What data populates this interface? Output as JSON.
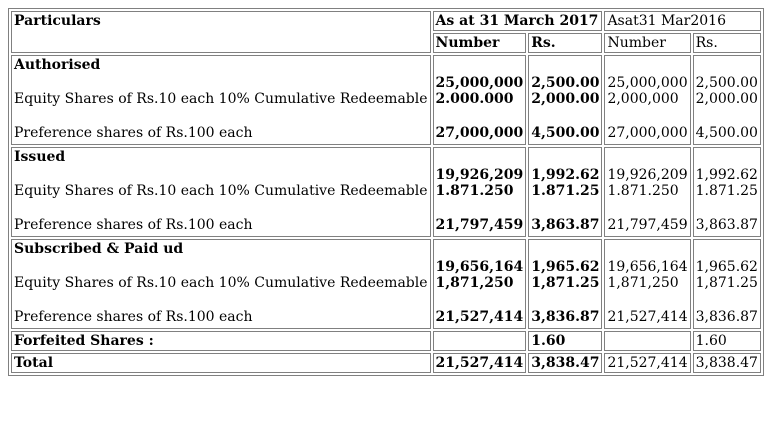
{
  "header": {
    "particulars": "Particulars",
    "period_2017": "As at 31 March 2017",
    "period_2016": "Asat31 Mar2016",
    "col_number": "Number",
    "col_rs": "Rs."
  },
  "sections": [
    {
      "title": "Authorised",
      "equity_label": "Equity Shares of Rs.10 each 10% Cumulative Redeemable",
      "preference_label": "Preference shares of Rs.100 each",
      "n2017": [
        "25,000,000",
        "2.000.000",
        "27,000,000"
      ],
      "r2017": [
        "2,500.00",
        "2,000.00",
        "4,500.00"
      ],
      "n2016": [
        "25,000,000",
        "2,000,000",
        "27,000,000"
      ],
      "r2016": [
        "2,500.00",
        "2,000.00",
        "4,500.00"
      ]
    },
    {
      "title": "Issued",
      "equity_label": "Equity Shares of Rs.10 each 10% Cumulative Redeemable",
      "preference_label": "Preference shares of Rs.100 each",
      "n2017": [
        "19,926,209",
        "1.871.250",
        "21,797,459"
      ],
      "r2017": [
        "1,992.62",
        "1.871.25",
        "3,863.87"
      ],
      "n2016": [
        "19,926,209",
        "1.871.250",
        "21,797,459"
      ],
      "r2016": [
        "1,992.62",
        "1.871.25",
        "3,863.87"
      ]
    },
    {
      "title": "Subscribed & Paid ud",
      "equity_label": "Equity Shares of Rs.10 each 10% Cumulative Redeemable",
      "preference_label": "Preference shares of Rs.100 each",
      "n2017": [
        "19,656,164",
        "1,871,250",
        "21,527,414"
      ],
      "r2017": [
        "1,965.62",
        "1,871.25",
        "3,836.87"
      ],
      "n2016": [
        "19,656,164",
        "1,871,250",
        "21,527,414"
      ],
      "r2016": [
        "1,965.62",
        "1,871.25",
        "3,836.87"
      ]
    }
  ],
  "forfeited": {
    "label": "Forfeited Shares :",
    "r2017": "1.60",
    "r2016": "1.60"
  },
  "total": {
    "label": "Total",
    "n2017": "21,527,414",
    "r2017": "3,838.47",
    "n2016": "21,527,414",
    "r2016": "3,838.47"
  }
}
